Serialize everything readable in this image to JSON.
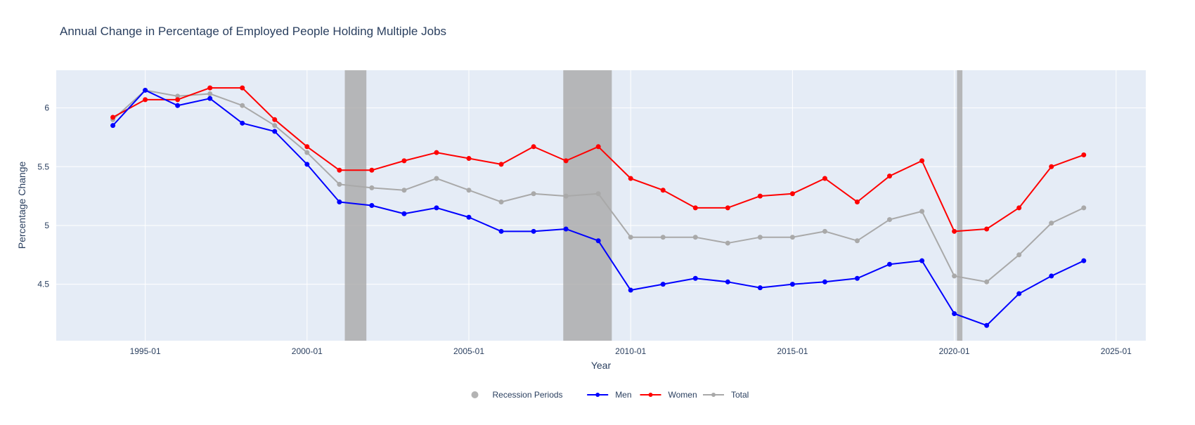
{
  "chart_data": {
    "type": "line",
    "title": "Annual Change in Percentage of Employed People Holding Multiple Jobs",
    "xlabel": "Year",
    "ylabel": "Percentage Change",
    "x_axis_type": "date",
    "xlim": [
      "1992-04",
      "2025-12"
    ],
    "ylim": [
      4.02,
      6.32
    ],
    "x_ticks": [
      {
        "date": "1995-01",
        "label": "1995-01"
      },
      {
        "date": "2000-01",
        "label": "2000-01"
      },
      {
        "date": "2005-01",
        "label": "2005-01"
      },
      {
        "date": "2010-01",
        "label": "2010-01"
      },
      {
        "date": "2015-01",
        "label": "2015-01"
      },
      {
        "date": "2020-01",
        "label": "2020-01"
      },
      {
        "date": "2025-01",
        "label": "2025-01"
      }
    ],
    "y_ticks": [
      4.5,
      5,
      5.5,
      6
    ],
    "y_tick_labels": [
      "4.5",
      "5",
      "5.5",
      "6"
    ],
    "grid": true,
    "legend_position": "bottom-center",
    "recessions": [
      {
        "start": "2001-03",
        "end": "2001-11"
      },
      {
        "start": "2007-12",
        "end": "2009-06"
      },
      {
        "start": "2020-02",
        "end": "2020-04"
      }
    ],
    "x": [
      "1994-01",
      "1995-01",
      "1996-01",
      "1997-01",
      "1998-01",
      "1999-01",
      "2000-01",
      "2001-01",
      "2002-01",
      "2003-01",
      "2004-01",
      "2005-01",
      "2006-01",
      "2007-01",
      "2008-01",
      "2009-01",
      "2010-01",
      "2011-01",
      "2012-01",
      "2013-01",
      "2014-01",
      "2015-01",
      "2016-01",
      "2017-01",
      "2018-01",
      "2019-01",
      "2020-01",
      "2021-01",
      "2022-01",
      "2023-01",
      "2024-01"
    ],
    "series": [
      {
        "name": "Men",
        "color": "#0000ff",
        "values": [
          5.85,
          6.15,
          6.02,
          6.08,
          5.87,
          5.8,
          5.52,
          5.2,
          5.17,
          5.1,
          5.15,
          5.07,
          4.95,
          4.95,
          4.97,
          4.87,
          4.45,
          4.5,
          4.55,
          4.52,
          4.47,
          4.5,
          4.52,
          4.55,
          4.67,
          4.7,
          4.25,
          4.15,
          4.42,
          4.57,
          4.7
        ]
      },
      {
        "name": "Women",
        "color": "#ff0000",
        "values": [
          5.92,
          6.07,
          6.07,
          6.17,
          6.17,
          5.9,
          5.67,
          5.47,
          5.47,
          5.55,
          5.62,
          5.57,
          5.52,
          5.67,
          5.55,
          5.67,
          5.4,
          5.3,
          5.15,
          5.15,
          5.25,
          5.27,
          5.4,
          5.2,
          5.42,
          5.55,
          4.95,
          4.97,
          5.15,
          5.5,
          5.6
        ]
      },
      {
        "name": "Total",
        "color": "#a9a9a9",
        "values": [
          5.9,
          6.15,
          6.1,
          6.12,
          6.02,
          5.85,
          5.62,
          5.35,
          5.32,
          5.3,
          5.4,
          5.3,
          5.2,
          5.27,
          5.25,
          5.27,
          4.9,
          4.9,
          4.9,
          4.85,
          4.9,
          4.9,
          4.95,
          4.87,
          5.05,
          5.12,
          4.57,
          4.52,
          4.75,
          5.02,
          5.15
        ]
      }
    ],
    "legend": [
      {
        "label": "Recession Periods",
        "color": "#b3b3b3",
        "marker": "dot"
      },
      {
        "label": "Men",
        "color": "#0000ff",
        "marker": "line"
      },
      {
        "label": "Women",
        "color": "#ff0000",
        "marker": "line"
      },
      {
        "label": "Total",
        "color": "#a9a9a9",
        "marker": "line"
      }
    ],
    "colors": {
      "plot_bg": "#e5ecf6",
      "recession": "#a9a9a9",
      "text": "#2a3f5f",
      "grid": "#ffffff"
    }
  }
}
